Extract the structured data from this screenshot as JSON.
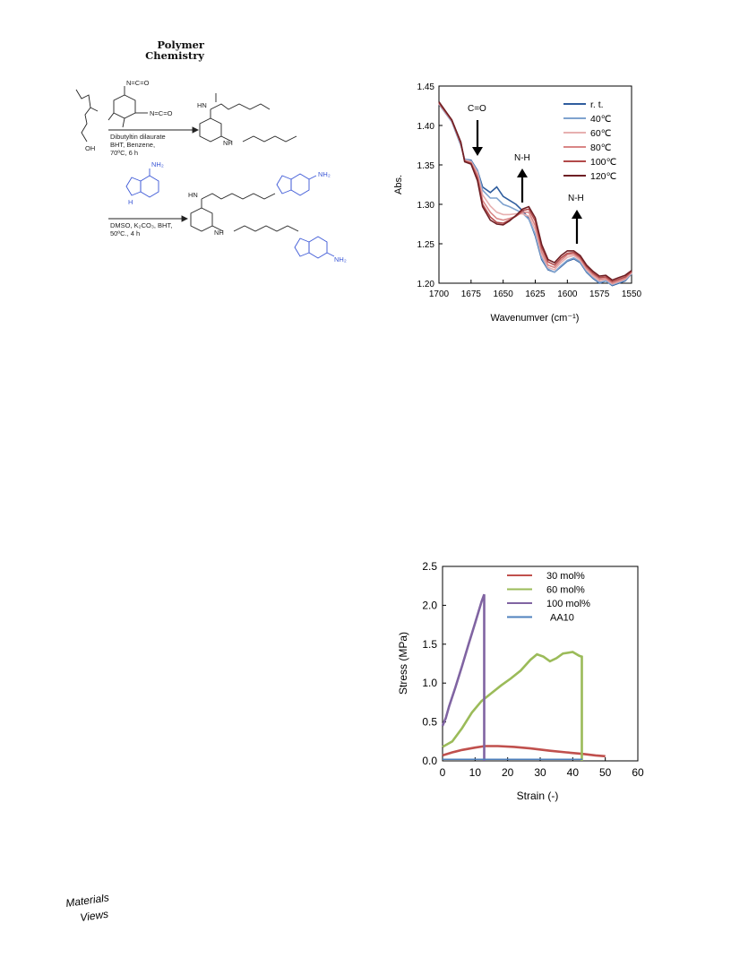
{
  "header": {
    "journal_line1": "Polymer",
    "journal_line2": "Chemistry"
  },
  "scheme": {
    "isocyanate_top": "N=C=O",
    "isocyanate_side": "N=C=O",
    "reagent_OH": "OH",
    "step1_conditions": [
      "Dibutyltin dilaurate",
      "BHT, Benzene,",
      "70ºC, 6 h"
    ],
    "step2_conditions": [
      "DMSO, K₂CO₃, BHT,",
      "50ºC., 4 h"
    ],
    "labels": {
      "HN": "HN",
      "NH": "NH",
      "NH2": "NH₂",
      "H": "H",
      "O": "O"
    }
  },
  "chart_data": [
    {
      "type": "line",
      "ylabel": "Abs.",
      "xlabel": "Wavenumver (cm⁻¹)",
      "xlim": [
        1700,
        1550
      ],
      "ylim": [
        1.2,
        1.45
      ],
      "x_ticks": [
        "1700",
        "1675",
        "1650",
        "1625",
        "1600",
        "1575",
        "1550"
      ],
      "y_ticks": [
        "1.45",
        "1.40",
        "1.35",
        "1.30",
        "1.25",
        "1.20"
      ],
      "legend_position": "top-right",
      "annotations": [
        "C=O",
        "N-H",
        "N-H"
      ],
      "x": [
        1700,
        1690,
        1683,
        1680,
        1675,
        1670,
        1666,
        1660,
        1655,
        1650,
        1645,
        1640,
        1635,
        1630,
        1625,
        1620,
        1615,
        1610,
        1605,
        1600,
        1595,
        1590,
        1585,
        1580,
        1575,
        1570,
        1565,
        1560,
        1555,
        1550
      ],
      "series": [
        {
          "name": "r. t.",
          "color": "#2f5d9e",
          "values": [
            1.427,
            1.405,
            1.375,
            1.357,
            1.356,
            1.343,
            1.322,
            1.315,
            1.322,
            1.31,
            1.305,
            1.3,
            1.292,
            1.282,
            1.26,
            1.23,
            1.217,
            1.214,
            1.221,
            1.228,
            1.231,
            1.226,
            1.214,
            1.206,
            1.2,
            1.203,
            1.197,
            1.2,
            1.203,
            1.212
          ]
        },
        {
          "name": "40℃",
          "color": "#7fa3cf",
          "values": [
            1.427,
            1.405,
            1.376,
            1.357,
            1.355,
            1.342,
            1.318,
            1.308,
            1.308,
            1.3,
            1.297,
            1.293,
            1.289,
            1.281,
            1.262,
            1.232,
            1.218,
            1.214,
            1.222,
            1.229,
            1.232,
            1.227,
            1.215,
            1.207,
            1.201,
            1.203,
            1.198,
            1.201,
            1.204,
            1.212
          ]
        },
        {
          "name": "60℃",
          "color": "#e7b0b0",
          "values": [
            1.428,
            1.406,
            1.377,
            1.356,
            1.354,
            1.34,
            1.312,
            1.298,
            1.29,
            1.287,
            1.287,
            1.288,
            1.288,
            1.285,
            1.268,
            1.236,
            1.22,
            1.217,
            1.226,
            1.233,
            1.235,
            1.229,
            1.217,
            1.209,
            1.203,
            1.205,
            1.199,
            1.202,
            1.205,
            1.213
          ]
        },
        {
          "name": "80℃",
          "color": "#d98686",
          "values": [
            1.428,
            1.406,
            1.377,
            1.355,
            1.353,
            1.337,
            1.305,
            1.29,
            1.282,
            1.28,
            1.282,
            1.285,
            1.29,
            1.29,
            1.273,
            1.24,
            1.223,
            1.22,
            1.229,
            1.236,
            1.237,
            1.231,
            1.219,
            1.211,
            1.205,
            1.206,
            1.2,
            1.203,
            1.206,
            1.214
          ]
        },
        {
          "name": "100℃",
          "color": "#b24a4a",
          "values": [
            1.429,
            1.407,
            1.378,
            1.355,
            1.352,
            1.333,
            1.3,
            1.284,
            1.277,
            1.276,
            1.28,
            1.285,
            1.292,
            1.294,
            1.279,
            1.245,
            1.227,
            1.223,
            1.232,
            1.238,
            1.239,
            1.233,
            1.221,
            1.213,
            1.207,
            1.208,
            1.202,
            1.205,
            1.208,
            1.215
          ]
        },
        {
          "name": "120℃",
          "color": "#6e1f24",
          "values": [
            1.43,
            1.407,
            1.379,
            1.354,
            1.351,
            1.33,
            1.297,
            1.28,
            1.275,
            1.274,
            1.279,
            1.286,
            1.294,
            1.297,
            1.283,
            1.249,
            1.23,
            1.226,
            1.235,
            1.241,
            1.241,
            1.235,
            1.223,
            1.215,
            1.209,
            1.21,
            1.204,
            1.207,
            1.21,
            1.216
          ]
        }
      ]
    },
    {
      "type": "line",
      "xlabel": "Strain (-)",
      "ylabel": "Stress (MPa)",
      "xlim": [
        0,
        60
      ],
      "ylim": [
        0,
        2.5
      ],
      "x_ticks": [
        "0",
        "10",
        "20",
        "30",
        "40",
        "50",
        "60"
      ],
      "y_ticks": [
        "2.5",
        "2.0",
        "1.5",
        "1.0",
        "0.5",
        "0.0"
      ],
      "legend_position": "top-center",
      "series": [
        {
          "name": "30 mol%",
          "color": "#c0504d",
          "x": [
            0,
            3,
            6,
            10,
            13,
            17,
            22,
            27,
            33,
            38,
            43,
            47,
            50
          ],
          "values": [
            0.07,
            0.11,
            0.14,
            0.17,
            0.19,
            0.19,
            0.18,
            0.16,
            0.13,
            0.11,
            0.09,
            0.07,
            0.06
          ]
        },
        {
          "name": "60 mol%",
          "color": "#9bbb59",
          "x": [
            0,
            3,
            6,
            9,
            12,
            15,
            18,
            21,
            24,
            27,
            29,
            31,
            33,
            35,
            37,
            40,
            42,
            42.8,
            42.8
          ],
          "values": [
            0.18,
            0.25,
            0.42,
            0.62,
            0.77,
            0.87,
            0.97,
            1.06,
            1.16,
            1.3,
            1.37,
            1.34,
            1.28,
            1.32,
            1.38,
            1.4,
            1.35,
            1.34,
            0.0
          ]
        },
        {
          "name": "100 mol%",
          "color": "#8064a2",
          "x": [
            0,
            1,
            2,
            4,
            6,
            8,
            10,
            12,
            12.8,
            12.8
          ],
          "values": [
            0.45,
            0.55,
            0.7,
            0.95,
            1.22,
            1.5,
            1.77,
            2.05,
            2.14,
            0.0
          ]
        },
        {
          "name": "AA10",
          "color": "#4f81bd",
          "x": [
            0,
            5,
            10,
            15,
            20,
            25,
            30,
            35,
            40,
            43
          ],
          "values": [
            0.02,
            0.02,
            0.02,
            0.02,
            0.02,
            0.02,
            0.02,
            0.02,
            0.02,
            0.02
          ]
        }
      ]
    }
  ],
  "footer": {
    "logo_line1": "Materials",
    "logo_line2": "Views"
  }
}
